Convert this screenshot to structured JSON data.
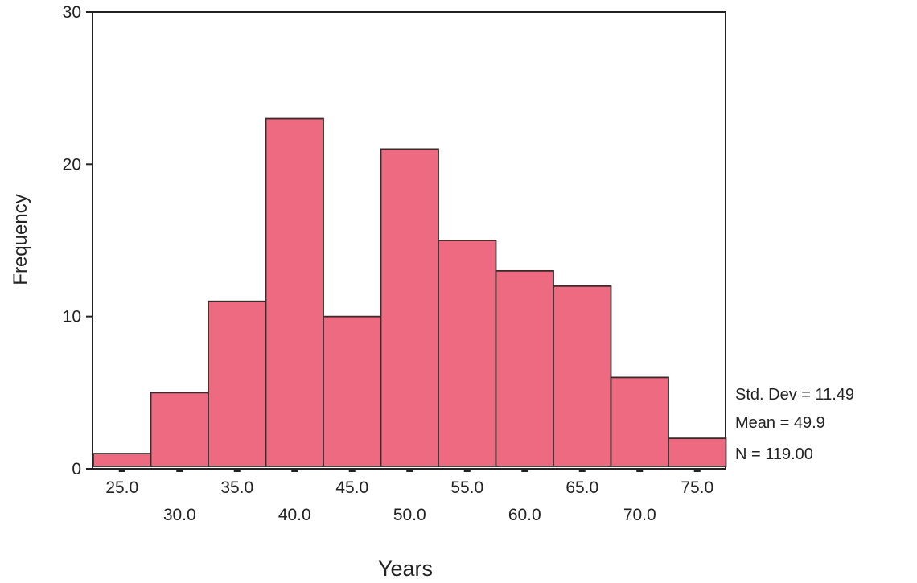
{
  "chart_data": {
    "type": "bar",
    "title": "",
    "xlabel": "Years",
    "ylabel": "Frequency",
    "categories": [
      "25.0",
      "30.0",
      "35.0",
      "40.0",
      "45.0",
      "50.0",
      "55.0",
      "60.0",
      "65.0",
      "70.0",
      "75.0"
    ],
    "values": [
      1,
      5,
      11,
      23,
      10,
      21,
      15,
      13,
      12,
      6,
      2
    ],
    "ylim": [
      0,
      30
    ],
    "yticks": [
      "0",
      "10",
      "20",
      "30"
    ],
    "grid": false,
    "stats": {
      "std_dev": "Std. Dev = 11.49",
      "mean": "Mean = 49.9",
      "n": "N = 119.00"
    },
    "colors": {
      "bar": "#ee6a80",
      "outline": "#3a2a2a"
    }
  }
}
